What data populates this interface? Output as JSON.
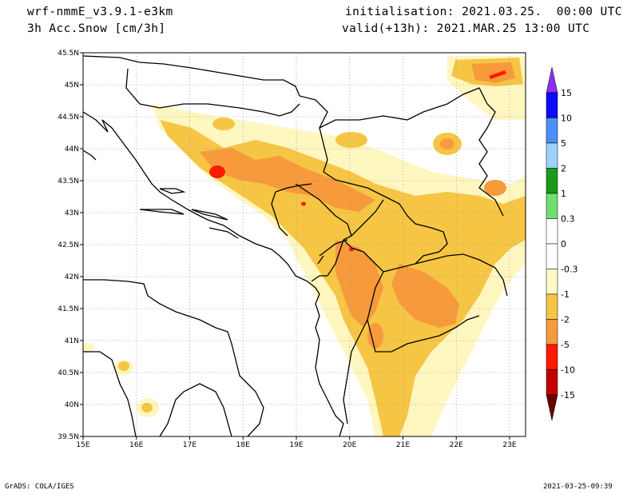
{
  "header": {
    "model": "wrf-nmmE_v3.9.1-e3km",
    "field": "3h Acc.Snow [cm/3h]",
    "init": "initialisation: 2021.03.25.  00:00 UTC",
    "valid": "valid(+13h): 2021.MAR.25 13:00 UTC"
  },
  "footer": {
    "left": "GrADS: COLA/IGES",
    "right": "2021-03-25-09:39"
  },
  "map": {
    "lon_labels": [
      "15E",
      "16E",
      "17E",
      "18E",
      "19E",
      "20E",
      "21E",
      "22E",
      "23E"
    ],
    "lat_labels": [
      "39.5N",
      "40N",
      "40.5N",
      "41N",
      "41.5N",
      "42N",
      "42.5N",
      "43N",
      "43.5N",
      "44N",
      "44.5N",
      "45N",
      "45.5N"
    ],
    "lon_range": [
      15,
      23.3
    ],
    "lat_range": [
      39.5,
      45.5
    ],
    "grid": "dotted"
  },
  "colorbar": {
    "labels": [
      "15",
      "10",
      "5",
      "2",
      "1",
      "0.3",
      "0",
      "-0.3",
      "-1",
      "-2",
      "-5",
      "-10",
      "-15"
    ],
    "colors": [
      "#0a0aff",
      "#4a8ff7",
      "#9dd1fb",
      "#1a9a1a",
      "#6fe06f",
      "#ffffff",
      "#ffffff",
      "#fff8c8",
      "#f6c544",
      "#f79a3c",
      "#ff1a00",
      "#c50000",
      "#7a0000"
    ],
    "top_triangle": "#8a2ff0",
    "bottom_triangle": "#6a0000"
  },
  "palette": {
    "light": "#fff6c0",
    "yellow": "#f6c544",
    "orange": "#f79a3c",
    "red": "#ff1a00"
  }
}
